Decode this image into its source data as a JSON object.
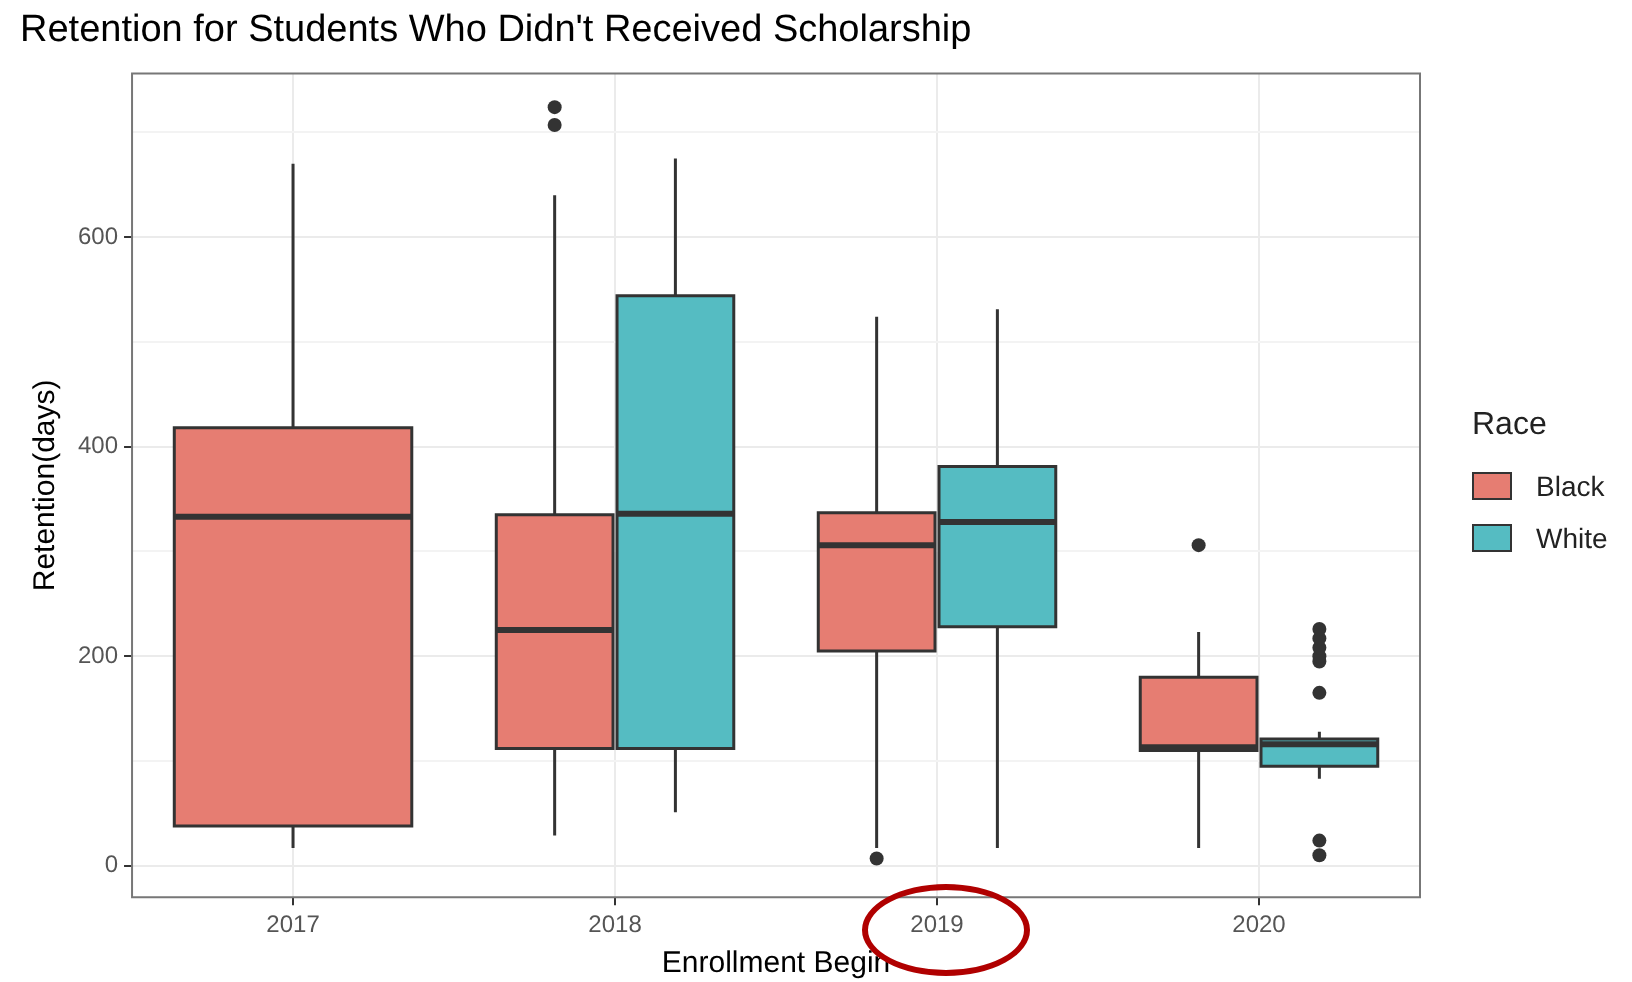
{
  "chart_data": {
    "type": "box",
    "title": "Retention for Students Who Didn't Received Scholarship",
    "xlabel": "Enrollment Begin",
    "ylabel": "Retention(days)",
    "legend_title": "Race",
    "legend": "right",
    "grid": true,
    "categories": [
      "2017",
      "2018",
      "2019",
      "2020"
    ],
    "ylim": [
      -30,
      756
    ],
    "yticks": [
      0,
      {
        "value": 100,
        "label": null
      },
      200,
      {
        "value": 300,
        "label": null
      },
      400,
      {
        "value": 500,
        "label": null
      },
      600,
      {
        "value": 700,
        "label": null
      }
    ],
    "series": [
      {
        "name": "Black",
        "color": "#e67d72",
        "boxes": [
          {
            "low": 17,
            "q1": 38,
            "median": 333,
            "q3": 418,
            "high": 670
          },
          {
            "low": 29,
            "q1": 112,
            "median": 225,
            "q3": 335,
            "high": 640,
            "outliers": [
              707,
              724
            ]
          },
          {
            "low": 17,
            "q1": 205,
            "median": 306,
            "q3": 337,
            "high": 524,
            "outliers": [
              7
            ]
          },
          {
            "low": 17,
            "q1": 110,
            "median": 113,
            "q3": 180,
            "high": 223,
            "outliers": [
              306
            ]
          }
        ]
      },
      {
        "name": "White",
        "color": "#55bcc2",
        "boxes": [
          null,
          {
            "low": 51,
            "q1": 112,
            "median": 336,
            "q3": 544,
            "high": 675
          },
          {
            "low": 17,
            "q1": 228,
            "median": 328,
            "q3": 381,
            "high": 531
          },
          {
            "low": 83,
            "q1": 95,
            "median": 116,
            "q3": 121,
            "high": 128,
            "outliers": [
              10,
              24,
              165,
              195,
              200,
              208,
              217,
              226
            ]
          }
        ]
      }
    ]
  }
}
